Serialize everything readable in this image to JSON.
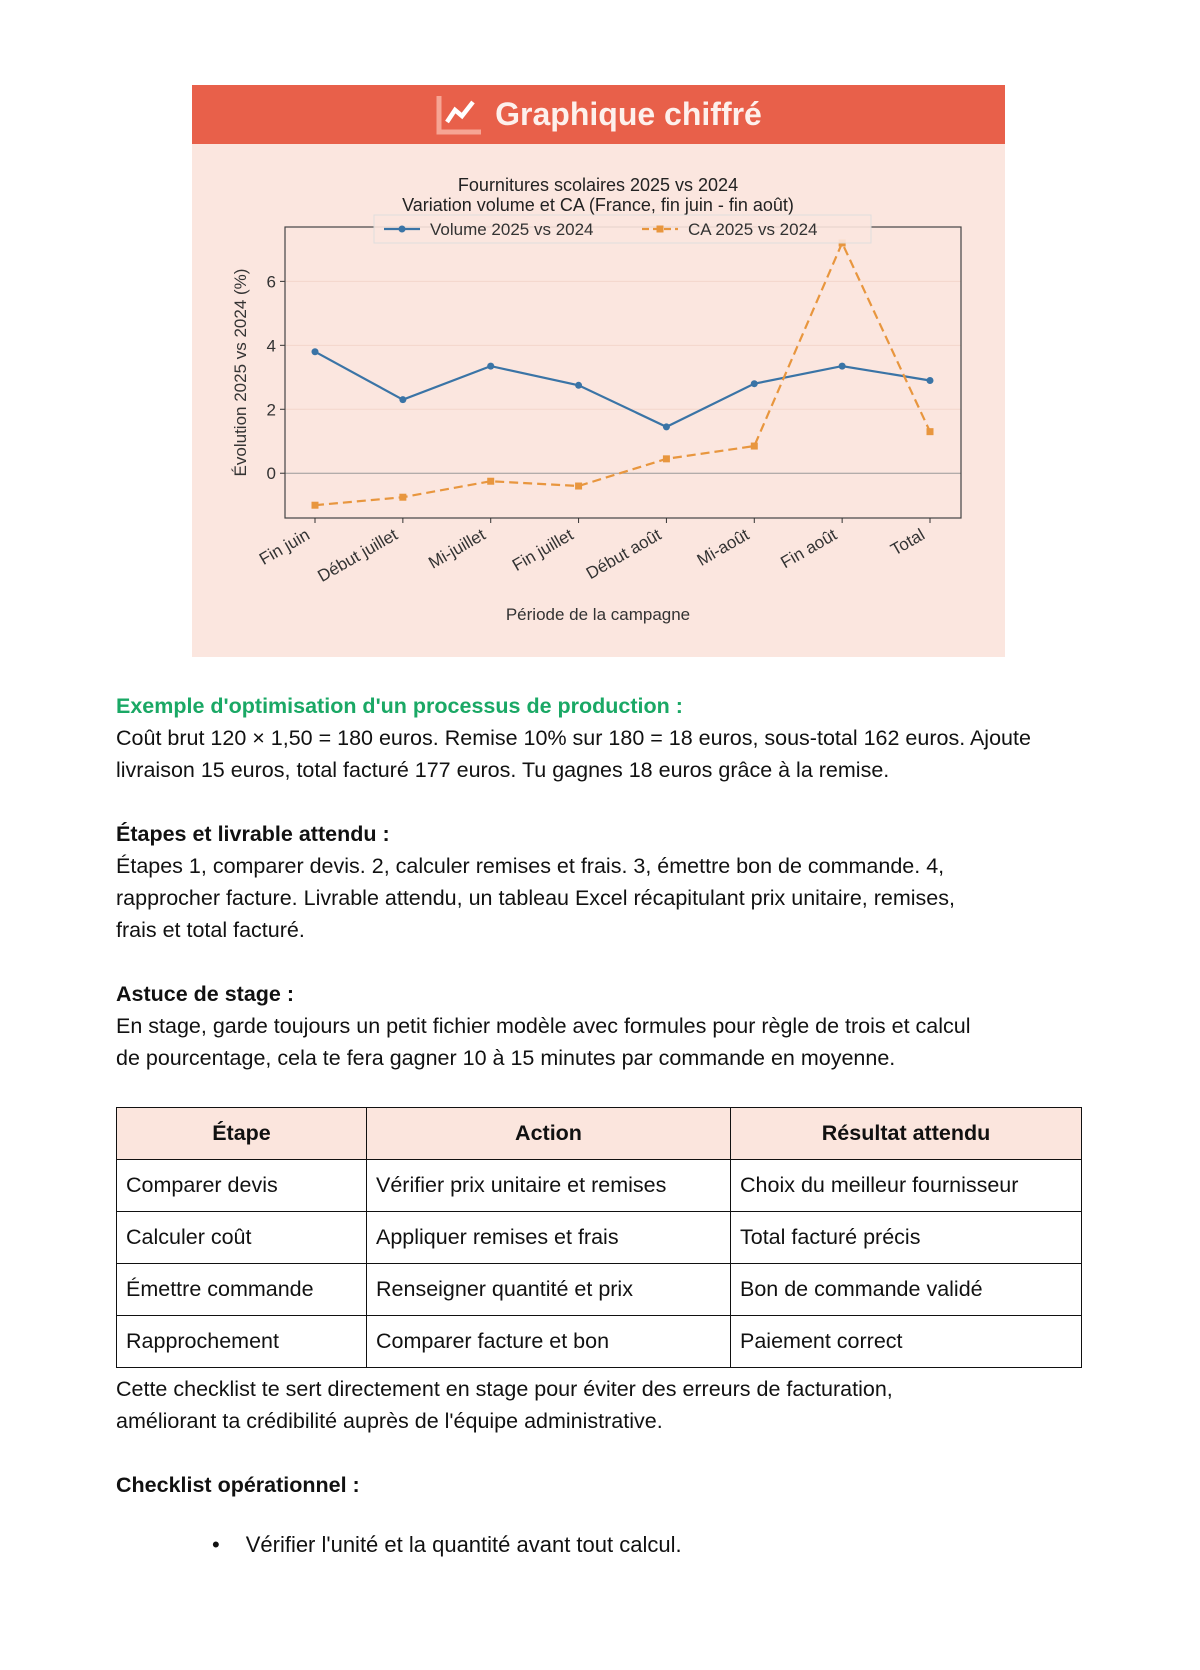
{
  "banner": {
    "title": "Graphique chiffré",
    "icon": "line-chart-icon"
  },
  "chart_data": {
    "type": "line",
    "title": "Fournitures scolaires 2025 vs 2024",
    "subtitle": "Variation volume et CA (France, fin juin - fin août)",
    "xlabel": "Période de la campagne",
    "ylabel": "Évolution 2025 vs 2024 (%)",
    "categories": [
      "Fin juin",
      "Début juillet",
      "Mi-juillet",
      "Fin juillet",
      "Début août",
      "Mi-août",
      "Fin août",
      "Total"
    ],
    "ylim": [
      -1.4,
      7.7
    ],
    "yticks": [
      0,
      2,
      4,
      6
    ],
    "grid": true,
    "legend_position": "top-center",
    "series": [
      {
        "name": "Volume 2025 vs 2024",
        "color": "#3a74a6",
        "style": "solid",
        "marker": "circle",
        "values": [
          3.8,
          2.3,
          3.35,
          2.75,
          1.45,
          2.8,
          3.35,
          2.9
        ]
      },
      {
        "name": "CA 2025 vs 2024",
        "color": "#e8963e",
        "style": "dashed",
        "marker": "square",
        "values": [
          -1.0,
          -0.75,
          -0.25,
          -0.4,
          0.45,
          0.85,
          7.2,
          1.3
        ]
      }
    ]
  },
  "section1": {
    "heading": "Exemple d'optimisation d'un processus de production :",
    "lines": [
      "Coût brut 120 × 1,50 = 180 euros. Remise 10% sur 180 = 18 euros, sous-total 162 euros. Ajoute",
      "livraison 15 euros, total facturé 177 euros. Tu gagnes 18 euros grâce à la remise."
    ]
  },
  "section2": {
    "heading": "Étapes et livrable attendu :",
    "lines": [
      "Étapes 1, comparer devis. 2, calculer remises et frais. 3, émettre bon de commande. 4,",
      "rapprocher facture. Livrable attendu, un tableau Excel récapitulant prix unitaire, remises,",
      "frais et total facturé."
    ]
  },
  "section3": {
    "heading": "Astuce de stage :",
    "lines": [
      "En stage, garde toujours un petit fichier modèle avec formules pour règle de trois et calcul",
      "de pourcentage, cela te fera gagner 10 à 15 minutes par commande en moyenne."
    ]
  },
  "table": {
    "headers": [
      "Étape",
      "Action",
      "Résultat attendu"
    ],
    "rows": [
      [
        "Comparer devis",
        "Vérifier prix unitaire et remises",
        "Choix du meilleur fournisseur"
      ],
      [
        "Calculer coût",
        "Appliquer remises et frais",
        "Total facturé précis"
      ],
      [
        "Émettre commande",
        "Renseigner quantité et prix",
        "Bon de commande validé"
      ],
      [
        "Rapprochement",
        "Comparer facture et bon",
        "Paiement correct"
      ]
    ]
  },
  "after_table": {
    "lines": [
      "Cette checklist te sert directement en stage pour éviter des erreurs de facturation,",
      "améliorant ta crédibilité auprès de l'équipe administrative."
    ]
  },
  "checklist": {
    "heading": "Checklist opérationnel :",
    "items": [
      "Vérifier l'unité et la quantité avant tout calcul."
    ]
  }
}
